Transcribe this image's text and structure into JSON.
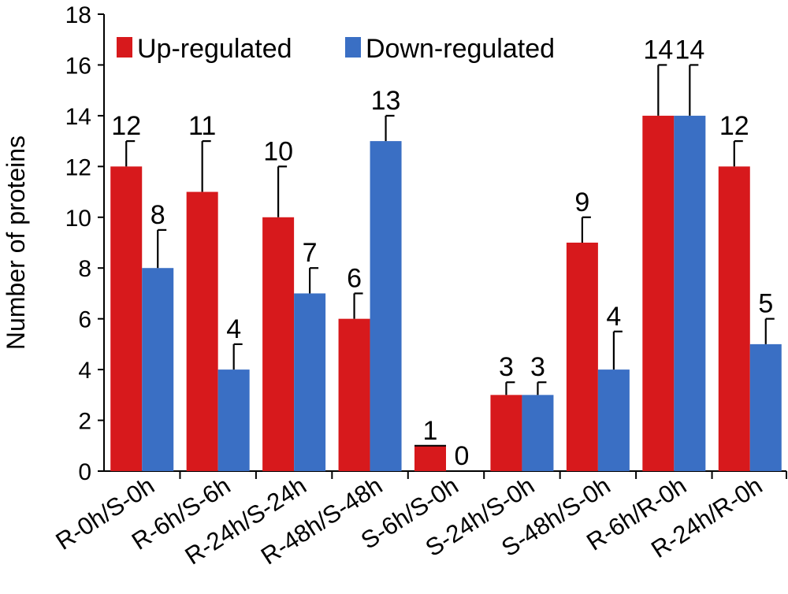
{
  "chart_data": {
    "type": "bar",
    "ylabel": "Number of proteins",
    "xlabel": "",
    "ylim": [
      0,
      18
    ],
    "yticks": [
      0,
      2,
      4,
      6,
      8,
      10,
      12,
      14,
      16,
      18
    ],
    "grid": false,
    "legend_placement": "top-left",
    "categories": [
      "R-0h/S-0h",
      "R-6h/S-6h",
      "R-24h/S-24h",
      "R-48h/S-48h",
      "S-6h/S-0h",
      "S-24h/S-0h",
      "S-48h/S-0h",
      "R-6h/R-0h",
      "R-24h/R-0h"
    ],
    "series": [
      {
        "name": "Up-regulated",
        "color": "#d7191c",
        "values": [
          12,
          11,
          10,
          6,
          1,
          3,
          9,
          14,
          12
        ],
        "errors": [
          1,
          2,
          2,
          1,
          0,
          0.5,
          1,
          2,
          1
        ],
        "labels": [
          "12",
          "11",
          "10",
          "6",
          "1",
          "3",
          "9",
          "14",
          "12"
        ]
      },
      {
        "name": "Down-regulated",
        "color": "#3a6fc4",
        "values": [
          8,
          4,
          7,
          13,
          0,
          3,
          4,
          14,
          5
        ],
        "errors": [
          1.5,
          1,
          1,
          1,
          0,
          0.5,
          1.5,
          2,
          1
        ],
        "labels": [
          "8",
          "4",
          "7",
          "13",
          "0",
          "3",
          "4",
          "14",
          "5"
        ]
      }
    ]
  }
}
